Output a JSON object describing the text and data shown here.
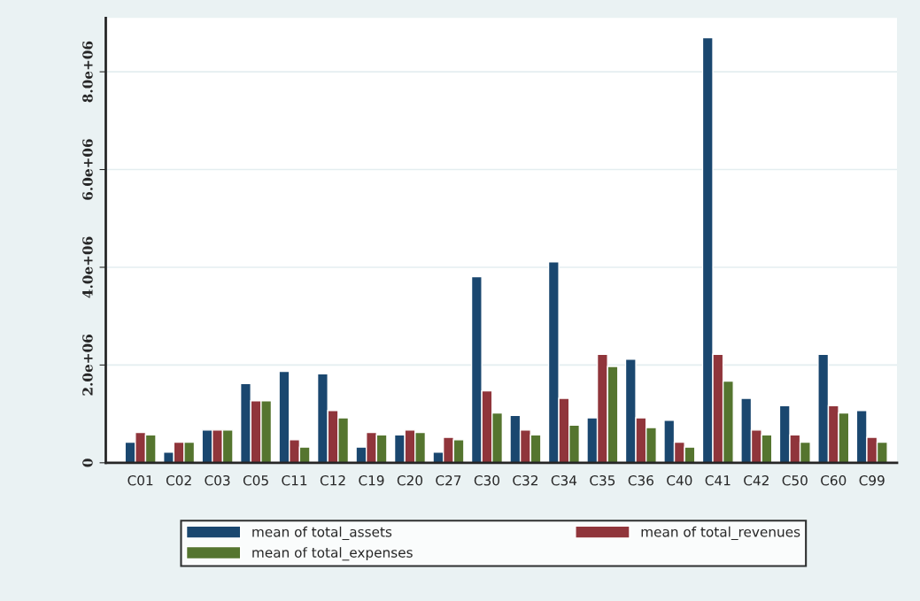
{
  "chart_data": {
    "type": "bar",
    "categories": [
      "C01",
      "C02",
      "C03",
      "C05",
      "C11",
      "C12",
      "C19",
      "C20",
      "C27",
      "C30",
      "C32",
      "C34",
      "C35",
      "C36",
      "C40",
      "C41",
      "C42",
      "C50",
      "C60",
      "C99"
    ],
    "series": [
      {
        "name": "mean of total_assets",
        "color": "#1a476f",
        "values": [
          420000,
          220000,
          670000,
          1620000,
          1870000,
          1820000,
          320000,
          570000,
          220000,
          3810000,
          970000,
          4110000,
          920000,
          2120000,
          870000,
          8700000,
          1320000,
          1170000,
          2220000,
          1070000
        ]
      },
      {
        "name": "mean of total_revenues",
        "color": "#90353b",
        "values": [
          620000,
          420000,
          670000,
          1270000,
          470000,
          1070000,
          620000,
          670000,
          520000,
          1470000,
          670000,
          1320000,
          2220000,
          920000,
          420000,
          2220000,
          670000,
          570000,
          1170000,
          520000
        ]
      },
      {
        "name": "mean of total_expenses",
        "color": "#55752f",
        "values": [
          570000,
          420000,
          670000,
          1270000,
          320000,
          920000,
          570000,
          620000,
          470000,
          1020000,
          570000,
          770000,
          1970000,
          720000,
          320000,
          1670000,
          570000,
          420000,
          1020000,
          420000
        ]
      }
    ],
    "ylim": [
      0,
      9100000
    ],
    "yticks": [
      0,
      {
        "value": 2000000,
        "label": "2.0e+06"
      },
      {
        "value": 4000000,
        "label": "4.0e+06"
      },
      {
        "value": 6000000,
        "label": "6.0e+06"
      },
      {
        "value": 8000000,
        "label": "8.0e+06"
      }
    ],
    "grid": "y",
    "legend": "bottom"
  }
}
